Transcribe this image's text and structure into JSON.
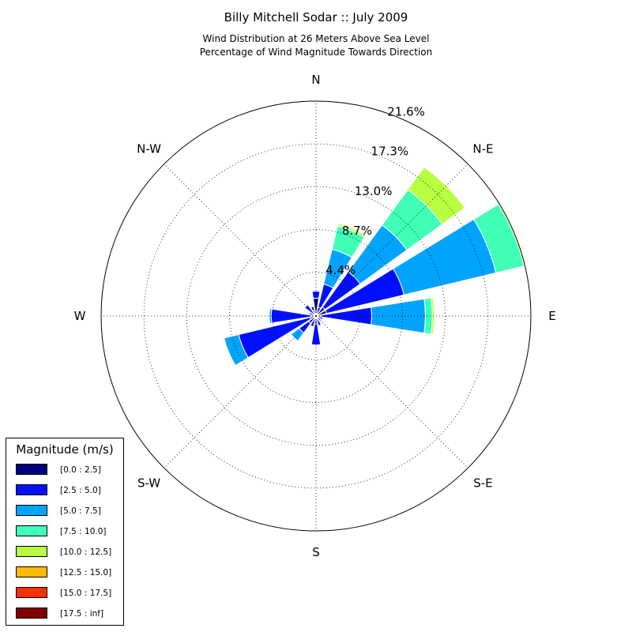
{
  "chart_data": {
    "type": "windrose",
    "title": "Billy Mitchell Sodar :: July 2009",
    "subtitle_lines": [
      "Wind Distribution at 26 Meters Above Sea Level",
      "Percentage of Wind Magnitude Towards Direction"
    ],
    "directions": [
      "E",
      "N-E",
      "N",
      "N-W",
      "W",
      "S-W",
      "S",
      "S-E"
    ],
    "radial_ticks": [
      "4.4%",
      "8.7%",
      "13.0%",
      "17.3%",
      "21.6%"
    ],
    "radial_max": 21.6,
    "legend_title": "Magnitude (m/s)",
    "bins": [
      {
        "label": "[0.0 : 2.5]",
        "color": "#000080"
      },
      {
        "label": "[2.5 : 5.0]",
        "color": "#0010ff"
      },
      {
        "label": "[5.0 : 7.5]",
        "color": "#00a4ff"
      },
      {
        "label": "[7.5 : 10.0]",
        "color": "#40ffb7"
      },
      {
        "label": "[10.0 : 12.5]",
        "color": "#b7ff40"
      },
      {
        "label": "[12.5 : 15.0]",
        "color": "#ffb900"
      },
      {
        "label": "[15.0 : 17.5]",
        "color": "#ff3000"
      },
      {
        "label": "[17.5 : inf]",
        "color": "#800000"
      }
    ],
    "sectors_deg_math": [
      0,
      22.5,
      45,
      67.5,
      90,
      112.5,
      135,
      157.5,
      180,
      202.5,
      225,
      247.5,
      270,
      292.5,
      315,
      337.5
    ],
    "cumulative_percent": [
      [
        0.5,
        5.6,
        11.0,
        11.7,
        11.9,
        11.9,
        11.9,
        11.9
      ],
      [
        1.1,
        9.1,
        18.6,
        21.5,
        21.7,
        21.7,
        21.7,
        21.7
      ],
      [
        1.1,
        5.5,
        11.3,
        15.7,
        18.5,
        18.5,
        18.5,
        18.5
      ],
      [
        0.9,
        3.3,
        6.9,
        9.3,
        9.5,
        9.6,
        9.6,
        9.6
      ],
      [
        1.8,
        2.5,
        2.6,
        2.6,
        2.6,
        2.6,
        2.6,
        2.6
      ],
      [
        0.6,
        1.0,
        1.0,
        1.0,
        1.0,
        1.0,
        1.0,
        1.0
      ],
      [
        0.4,
        1.4,
        1.4,
        1.4,
        1.4,
        1.4,
        1.4,
        1.4
      ],
      [
        0.3,
        0.7,
        0.7,
        0.7,
        0.7,
        0.7,
        0.7,
        0.7
      ],
      [
        0.5,
        4.5,
        4.7,
        4.7,
        4.7,
        4.7,
        4.7,
        4.7
      ],
      [
        0.6,
        8.0,
        9.5,
        9.5,
        9.5,
        9.5,
        9.5,
        9.5
      ],
      [
        0.9,
        2.1,
        3.1,
        3.1,
        3.1,
        3.1,
        3.1,
        3.1
      ],
      [
        0.3,
        1.1,
        1.1,
        1.1,
        1.1,
        1.1,
        1.1,
        1.1
      ],
      [
        0.8,
        2.9,
        2.9,
        2.9,
        2.9,
        2.9,
        2.9,
        2.9
      ],
      [
        0.4,
        1.0,
        1.0,
        1.0,
        1.0,
        1.0,
        1.0,
        1.0
      ],
      [
        0.3,
        0.6,
        0.6,
        0.6,
        0.6,
        0.6,
        0.6,
        0.6
      ],
      [
        0.2,
        0.7,
        0.7,
        0.7,
        0.7,
        0.7,
        0.7,
        0.7
      ]
    ]
  }
}
